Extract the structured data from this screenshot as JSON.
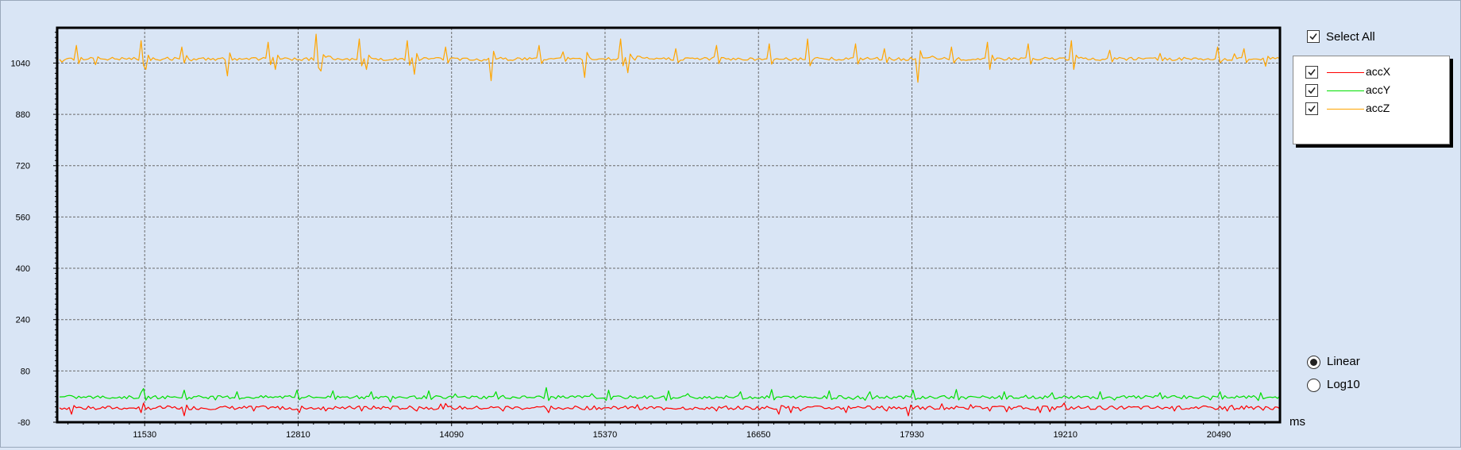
{
  "controls": {
    "select_all_label": "Select All",
    "select_all_checked": true,
    "scale_options": [
      {
        "label": "Linear",
        "selected": true
      },
      {
        "label": "Log10",
        "selected": false
      }
    ]
  },
  "legend": [
    {
      "label": "accX",
      "color": "#ff0000",
      "checked": true
    },
    {
      "label": "accY",
      "color": "#00e000",
      "checked": true
    },
    {
      "label": "accZ",
      "color": "#ffa500",
      "checked": true
    }
  ],
  "chart_data": {
    "type": "line",
    "title": "",
    "xlabel": "ms",
    "ylabel": "",
    "xlim": [
      10800,
      21000
    ],
    "ylim": [
      -80,
      1150
    ],
    "x_ticks": [
      11530,
      12810,
      14090,
      15370,
      16650,
      17930,
      19210,
      20490
    ],
    "y_ticks": [
      -80,
      80,
      240,
      400,
      560,
      720,
      880,
      1040
    ],
    "grid": true,
    "series": [
      {
        "name": "accX",
        "color": "#ff0000",
        "baseline": -35,
        "noise": 6,
        "x_start": 10820,
        "x_end": 21000,
        "step": 20,
        "spikes": [
          [
            10920,
            -55
          ],
          [
            11070,
            -30
          ],
          [
            11500,
            -50
          ],
          [
            11530,
            -20
          ],
          [
            11860,
            -60
          ],
          [
            12450,
            -45
          ],
          [
            12820,
            -50
          ],
          [
            13350,
            -45
          ],
          [
            13800,
            -45
          ],
          [
            14520,
            -45
          ],
          [
            14900,
            -50
          ],
          [
            15690,
            -40
          ],
          [
            16300,
            -45
          ],
          [
            16820,
            -55
          ],
          [
            17380,
            -50
          ],
          [
            17720,
            -45
          ],
          [
            17910,
            -60
          ],
          [
            18580,
            -45
          ],
          [
            19010,
            -50
          ],
          [
            19210,
            -20
          ],
          [
            19650,
            -40
          ],
          [
            20120,
            -45
          ],
          [
            20560,
            -45
          ],
          [
            20780,
            -40
          ]
        ]
      },
      {
        "name": "accY",
        "color": "#00e000",
        "baseline": -2,
        "noise": 5,
        "x_start": 10820,
        "x_end": 21000,
        "step": 20,
        "spikes": [
          [
            11530,
            25
          ],
          [
            11870,
            20
          ],
          [
            12300,
            15
          ],
          [
            12810,
            20
          ],
          [
            13100,
            18
          ],
          [
            13420,
            15
          ],
          [
            13900,
            18
          ],
          [
            14460,
            15
          ],
          [
            14880,
            28
          ],
          [
            15400,
            20
          ],
          [
            15900,
            18
          ],
          [
            16500,
            15
          ],
          [
            16770,
            22
          ],
          [
            17250,
            18
          ],
          [
            17580,
            15
          ],
          [
            17950,
            20
          ],
          [
            18300,
            22
          ],
          [
            18700,
            15
          ],
          [
            19100,
            12
          ],
          [
            19500,
            15
          ],
          [
            20000,
            12
          ],
          [
            20500,
            15
          ],
          [
            20850,
            12
          ]
        ]
      },
      {
        "name": "accZ",
        "color": "#ffa500",
        "baseline": 1053,
        "noise": 5,
        "x_start": 10820,
        "x_end": 21000,
        "step": 20,
        "spikes": [
          [
            10960,
            1095
          ],
          [
            11120,
            1035
          ],
          [
            11510,
            1110
          ],
          [
            11540,
            1020
          ],
          [
            11850,
            1090
          ],
          [
            12230,
            1000
          ],
          [
            12560,
            1105
          ],
          [
            12620,
            1020
          ],
          [
            12960,
            1130
          ],
          [
            13010,
            1015
          ],
          [
            13320,
            1115
          ],
          [
            13380,
            1020
          ],
          [
            13730,
            1110
          ],
          [
            13780,
            1005
          ],
          [
            14050,
            1090
          ],
          [
            14420,
            985
          ],
          [
            14830,
            1095
          ],
          [
            15030,
            1075
          ],
          [
            15210,
            995
          ],
          [
            15510,
            1115
          ],
          [
            15560,
            1010
          ],
          [
            15960,
            1085
          ],
          [
            16300,
            1095
          ],
          [
            16750,
            1100
          ],
          [
            17070,
            1115
          ],
          [
            17460,
            1100
          ],
          [
            17700,
            1085
          ],
          [
            17990,
            980
          ],
          [
            18270,
            1090
          ],
          [
            18560,
            1105
          ],
          [
            18580,
            1020
          ],
          [
            18900,
            1100
          ],
          [
            19260,
            1110
          ],
          [
            19290,
            1020
          ],
          [
            19580,
            1080
          ],
          [
            20000,
            1070
          ],
          [
            20490,
            1090
          ],
          [
            20700,
            1085
          ],
          [
            20880,
            1030
          ]
        ]
      }
    ]
  }
}
